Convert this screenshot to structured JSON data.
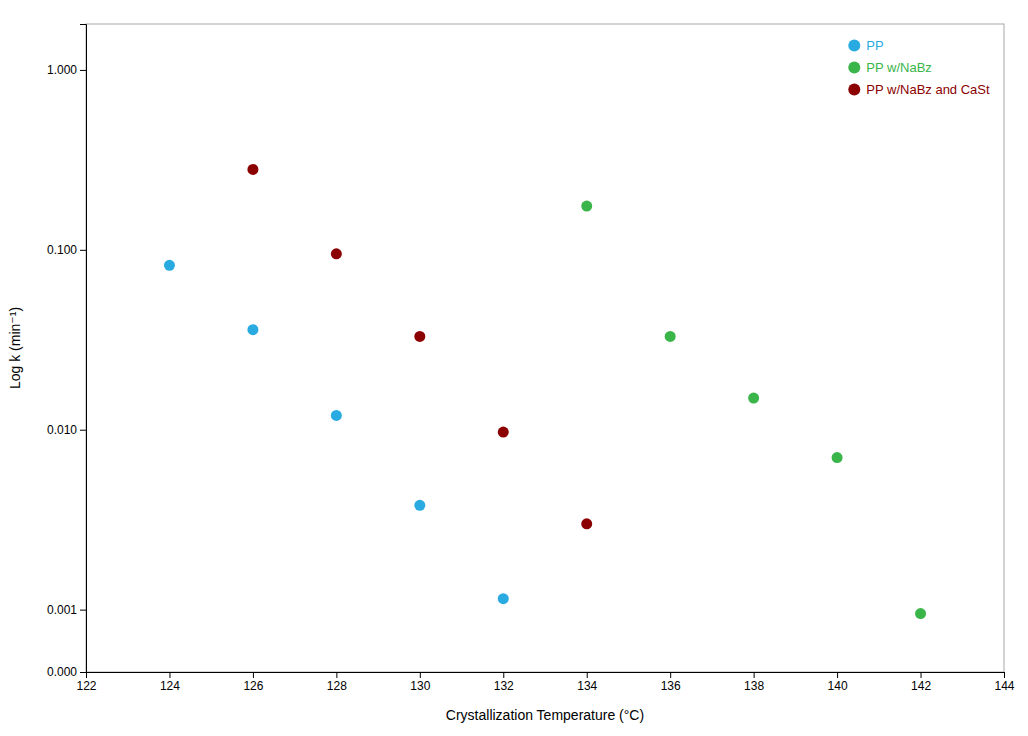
{
  "chart_data": {
    "type": "scatter",
    "x_label": "Crystallization Temperature (°C)",
    "y_label": "Log k (min⁻¹)",
    "log": "y",
    "grid": false,
    "legend": "upper-right",
    "xlim": [
      122,
      144
    ],
    "xticks": [
      122,
      124,
      126,
      128,
      130,
      132,
      134,
      136,
      138,
      140,
      142,
      144
    ],
    "ylim": [
      0.00045,
      1.8
    ],
    "yticks": [
      {
        "value": 0.00045,
        "label": "0.000"
      },
      0.001,
      {
        "value": 0.01,
        "label": "0.010"
      },
      {
        "value": 0.1,
        "label": "0.100"
      },
      {
        "value": 1.0,
        "label": "1.000"
      }
    ],
    "series": [
      {
        "name": "PP",
        "color": "#29ABE2",
        "x": [
          124,
          126,
          128,
          130,
          132
        ],
        "values": [
          0.082,
          0.036,
          0.012,
          0.0038,
          0.00115
        ]
      },
      {
        "name": "PP w/NaBz",
        "color": "#39B54A",
        "x": [
          134,
          136,
          138,
          140,
          142
        ],
        "values": [
          0.175,
          0.033,
          0.015,
          0.007,
          0.00095
        ]
      },
      {
        "name": "PP w/NaBz and CaSt",
        "color": "#8B0000",
        "x": [
          126,
          128,
          130,
          132,
          134
        ],
        "values": [
          0.28,
          0.095,
          0.033,
          0.0097,
          0.003
        ]
      }
    ]
  }
}
